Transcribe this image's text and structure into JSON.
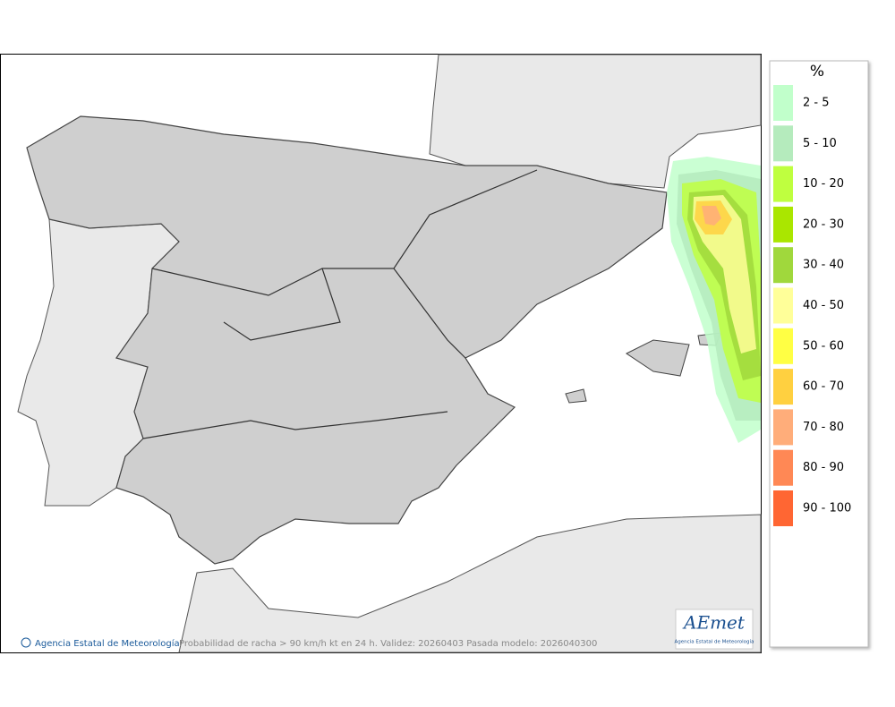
{
  "map": {
    "footer_credit": "Agencia Estatal de Meteorología",
    "caption": "Probabilidad de racha > 90 km/h kt en 24 h. Validez: 20260403 Pasada modelo: 2026040300",
    "logo": {
      "name": "AEmet",
      "subtitle": "Agencia Estatal de Meteorología"
    }
  },
  "legend": {
    "title": "%",
    "items": [
      {
        "label": "2 - 5",
        "color": "#c1ffcb"
      },
      {
        "label": "5 - 10",
        "color": "#b5ebbd"
      },
      {
        "label": "10 - 20",
        "color": "#bfff3f"
      },
      {
        "label": "20 - 30",
        "color": "#aae600"
      },
      {
        "label": "30 - 40",
        "color": "#a0d83c"
      },
      {
        "label": "40 - 50",
        "color": "#ffff99"
      },
      {
        "label": "50 - 60",
        "color": "#ffff44"
      },
      {
        "label": "60 - 70",
        "color": "#ffd040"
      },
      {
        "label": "70 - 80",
        "color": "#ffad7a"
      },
      {
        "label": "80 - 90",
        "color": "#ff8855"
      },
      {
        "label": "90 - 100",
        "color": "#ff6633"
      }
    ]
  }
}
